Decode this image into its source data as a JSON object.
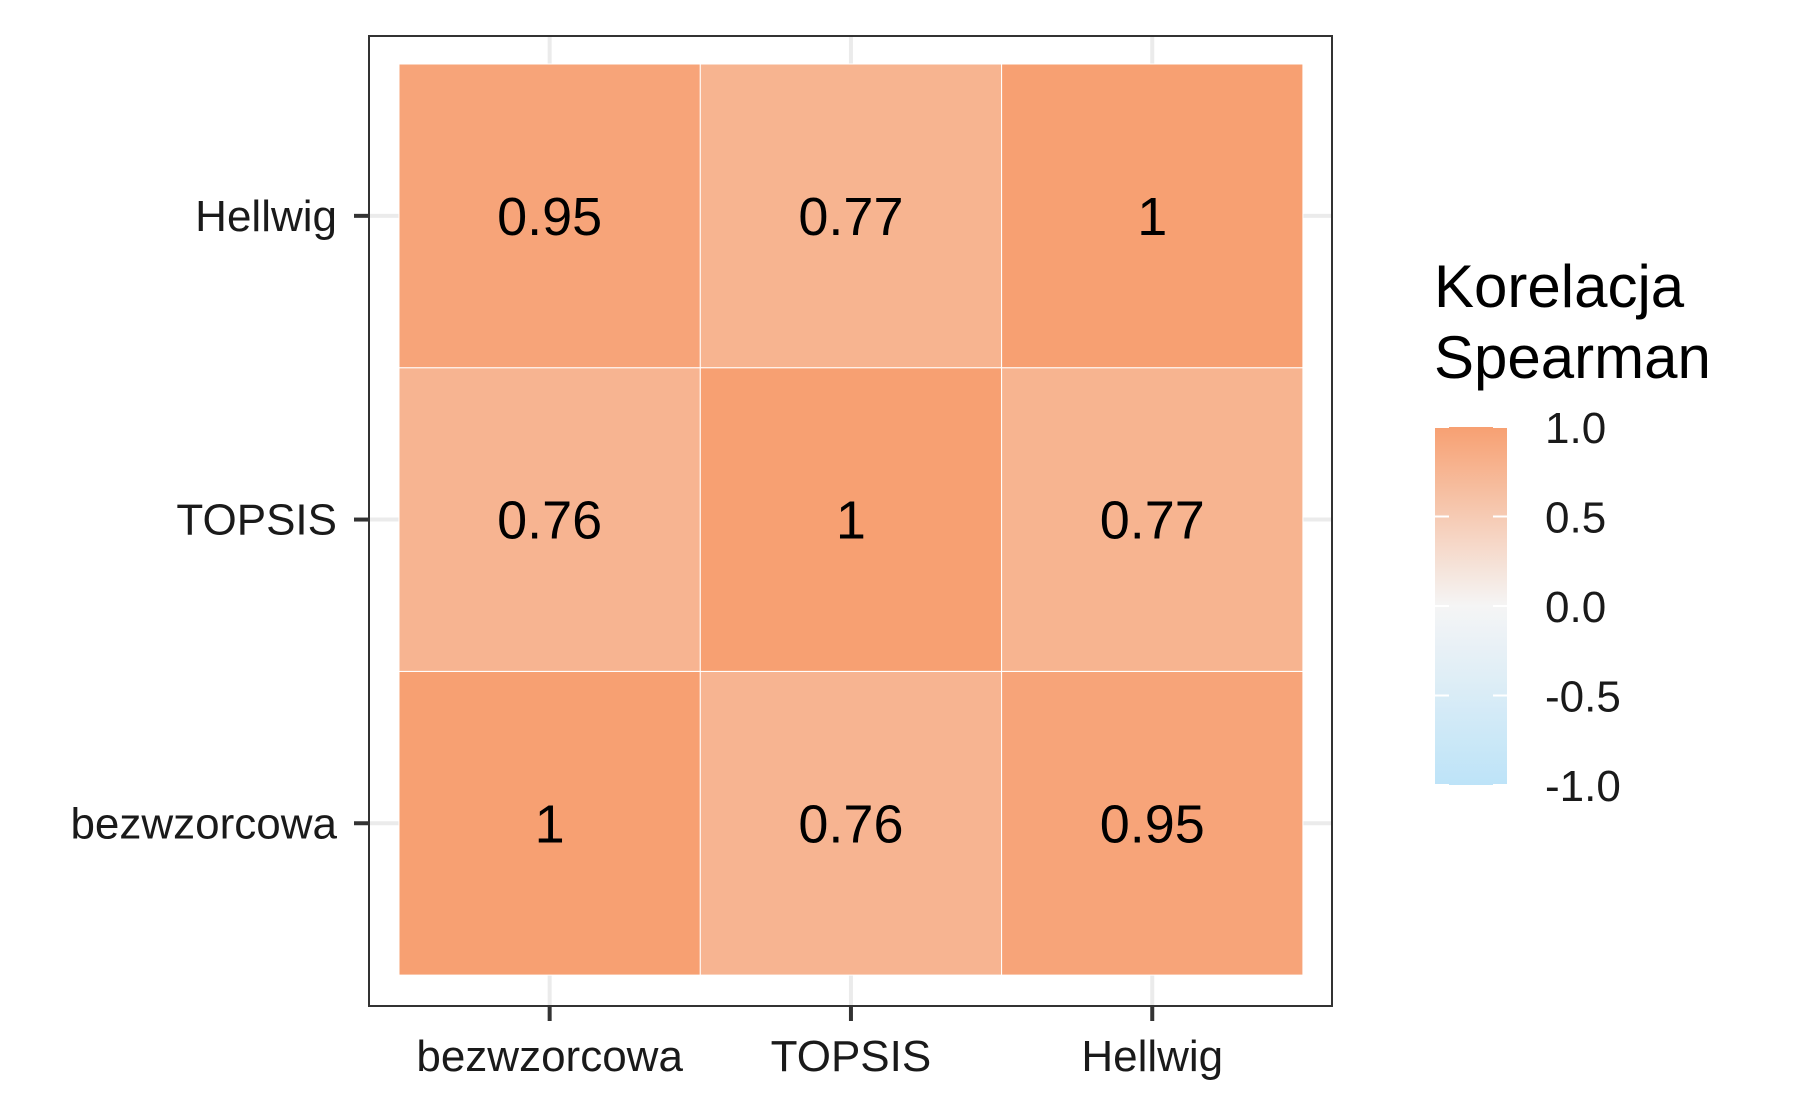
{
  "chart_data": {
    "type": "heatmap",
    "x_categories": [
      "bezwzorcowa",
      "TOPSIS",
      "Hellwig"
    ],
    "y_categories": [
      "bezwzorcowa",
      "TOPSIS",
      "Hellwig"
    ],
    "cells": [
      {
        "x": "bezwzorcowa",
        "y": "bezwzorcowa",
        "value": 1,
        "label": "1"
      },
      {
        "x": "TOPSIS",
        "y": "bezwzorcowa",
        "value": 0.76,
        "label": "0.76"
      },
      {
        "x": "Hellwig",
        "y": "bezwzorcowa",
        "value": 0.95,
        "label": "0.95"
      },
      {
        "x": "bezwzorcowa",
        "y": "TOPSIS",
        "value": 0.76,
        "label": "0.76"
      },
      {
        "x": "TOPSIS",
        "y": "TOPSIS",
        "value": 1,
        "label": "1"
      },
      {
        "x": "Hellwig",
        "y": "TOPSIS",
        "value": 0.77,
        "label": "0.77"
      },
      {
        "x": "bezwzorcowa",
        "y": "Hellwig",
        "value": 0.95,
        "label": "0.95"
      },
      {
        "x": "TOPSIS",
        "y": "Hellwig",
        "value": 0.77,
        "label": "0.77"
      },
      {
        "x": "Hellwig",
        "y": "Hellwig",
        "value": 1,
        "label": "1"
      }
    ],
    "legend": {
      "title_lines": [
        "Korelacja",
        "Spearman"
      ],
      "ticks": [
        {
          "value": 1.0,
          "label": "1.0"
        },
        {
          "value": 0.5,
          "label": "0.5"
        },
        {
          "value": 0.0,
          "label": "0.0"
        },
        {
          "value": -0.5,
          "label": "-0.5"
        },
        {
          "value": -1.0,
          "label": "-1.0"
        }
      ],
      "range": [
        -1,
        1
      ],
      "placement": "right"
    },
    "colors": {
      "low": "#BDE3F8",
      "mid": "#F5F5F5",
      "high": "#F7A072"
    },
    "grid": true
  }
}
